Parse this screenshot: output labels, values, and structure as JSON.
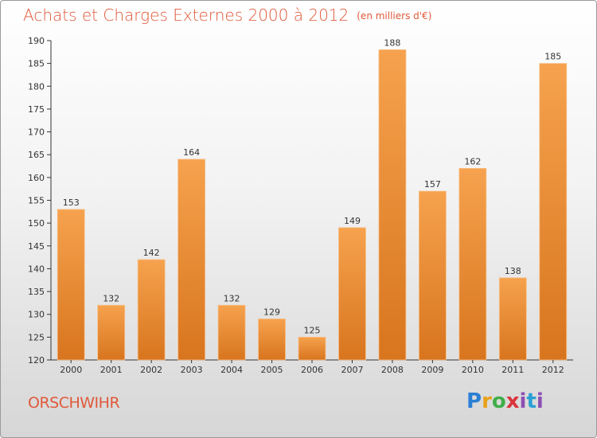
{
  "title": "Achats et Charges Externes 2000 à 2012",
  "unit_note": "(en milliers d'€)",
  "commune": "ORSCHWIHR",
  "logo_text": "Proxiti",
  "colors": {
    "accent": "#e0593a",
    "bar_top": "#f6a24e",
    "bar_bottom": "#d8751e"
  },
  "chart_data": {
    "type": "bar",
    "title": "Achats et Charges Externes 2000 à 2012",
    "xlabel": "",
    "ylabel": "",
    "categories": [
      "2000",
      "2001",
      "2002",
      "2003",
      "2004",
      "2005",
      "2006",
      "2007",
      "2008",
      "2009",
      "2010",
      "2011",
      "2012"
    ],
    "values": [
      153,
      132,
      142,
      164,
      132,
      129,
      125,
      149,
      188,
      157,
      162,
      138,
      185
    ],
    "ylim": [
      120,
      190
    ],
    "yticks": [
      120,
      125,
      130,
      135,
      140,
      145,
      150,
      155,
      160,
      165,
      170,
      175,
      180,
      185,
      190
    ],
    "grid": false,
    "legend": "none"
  }
}
